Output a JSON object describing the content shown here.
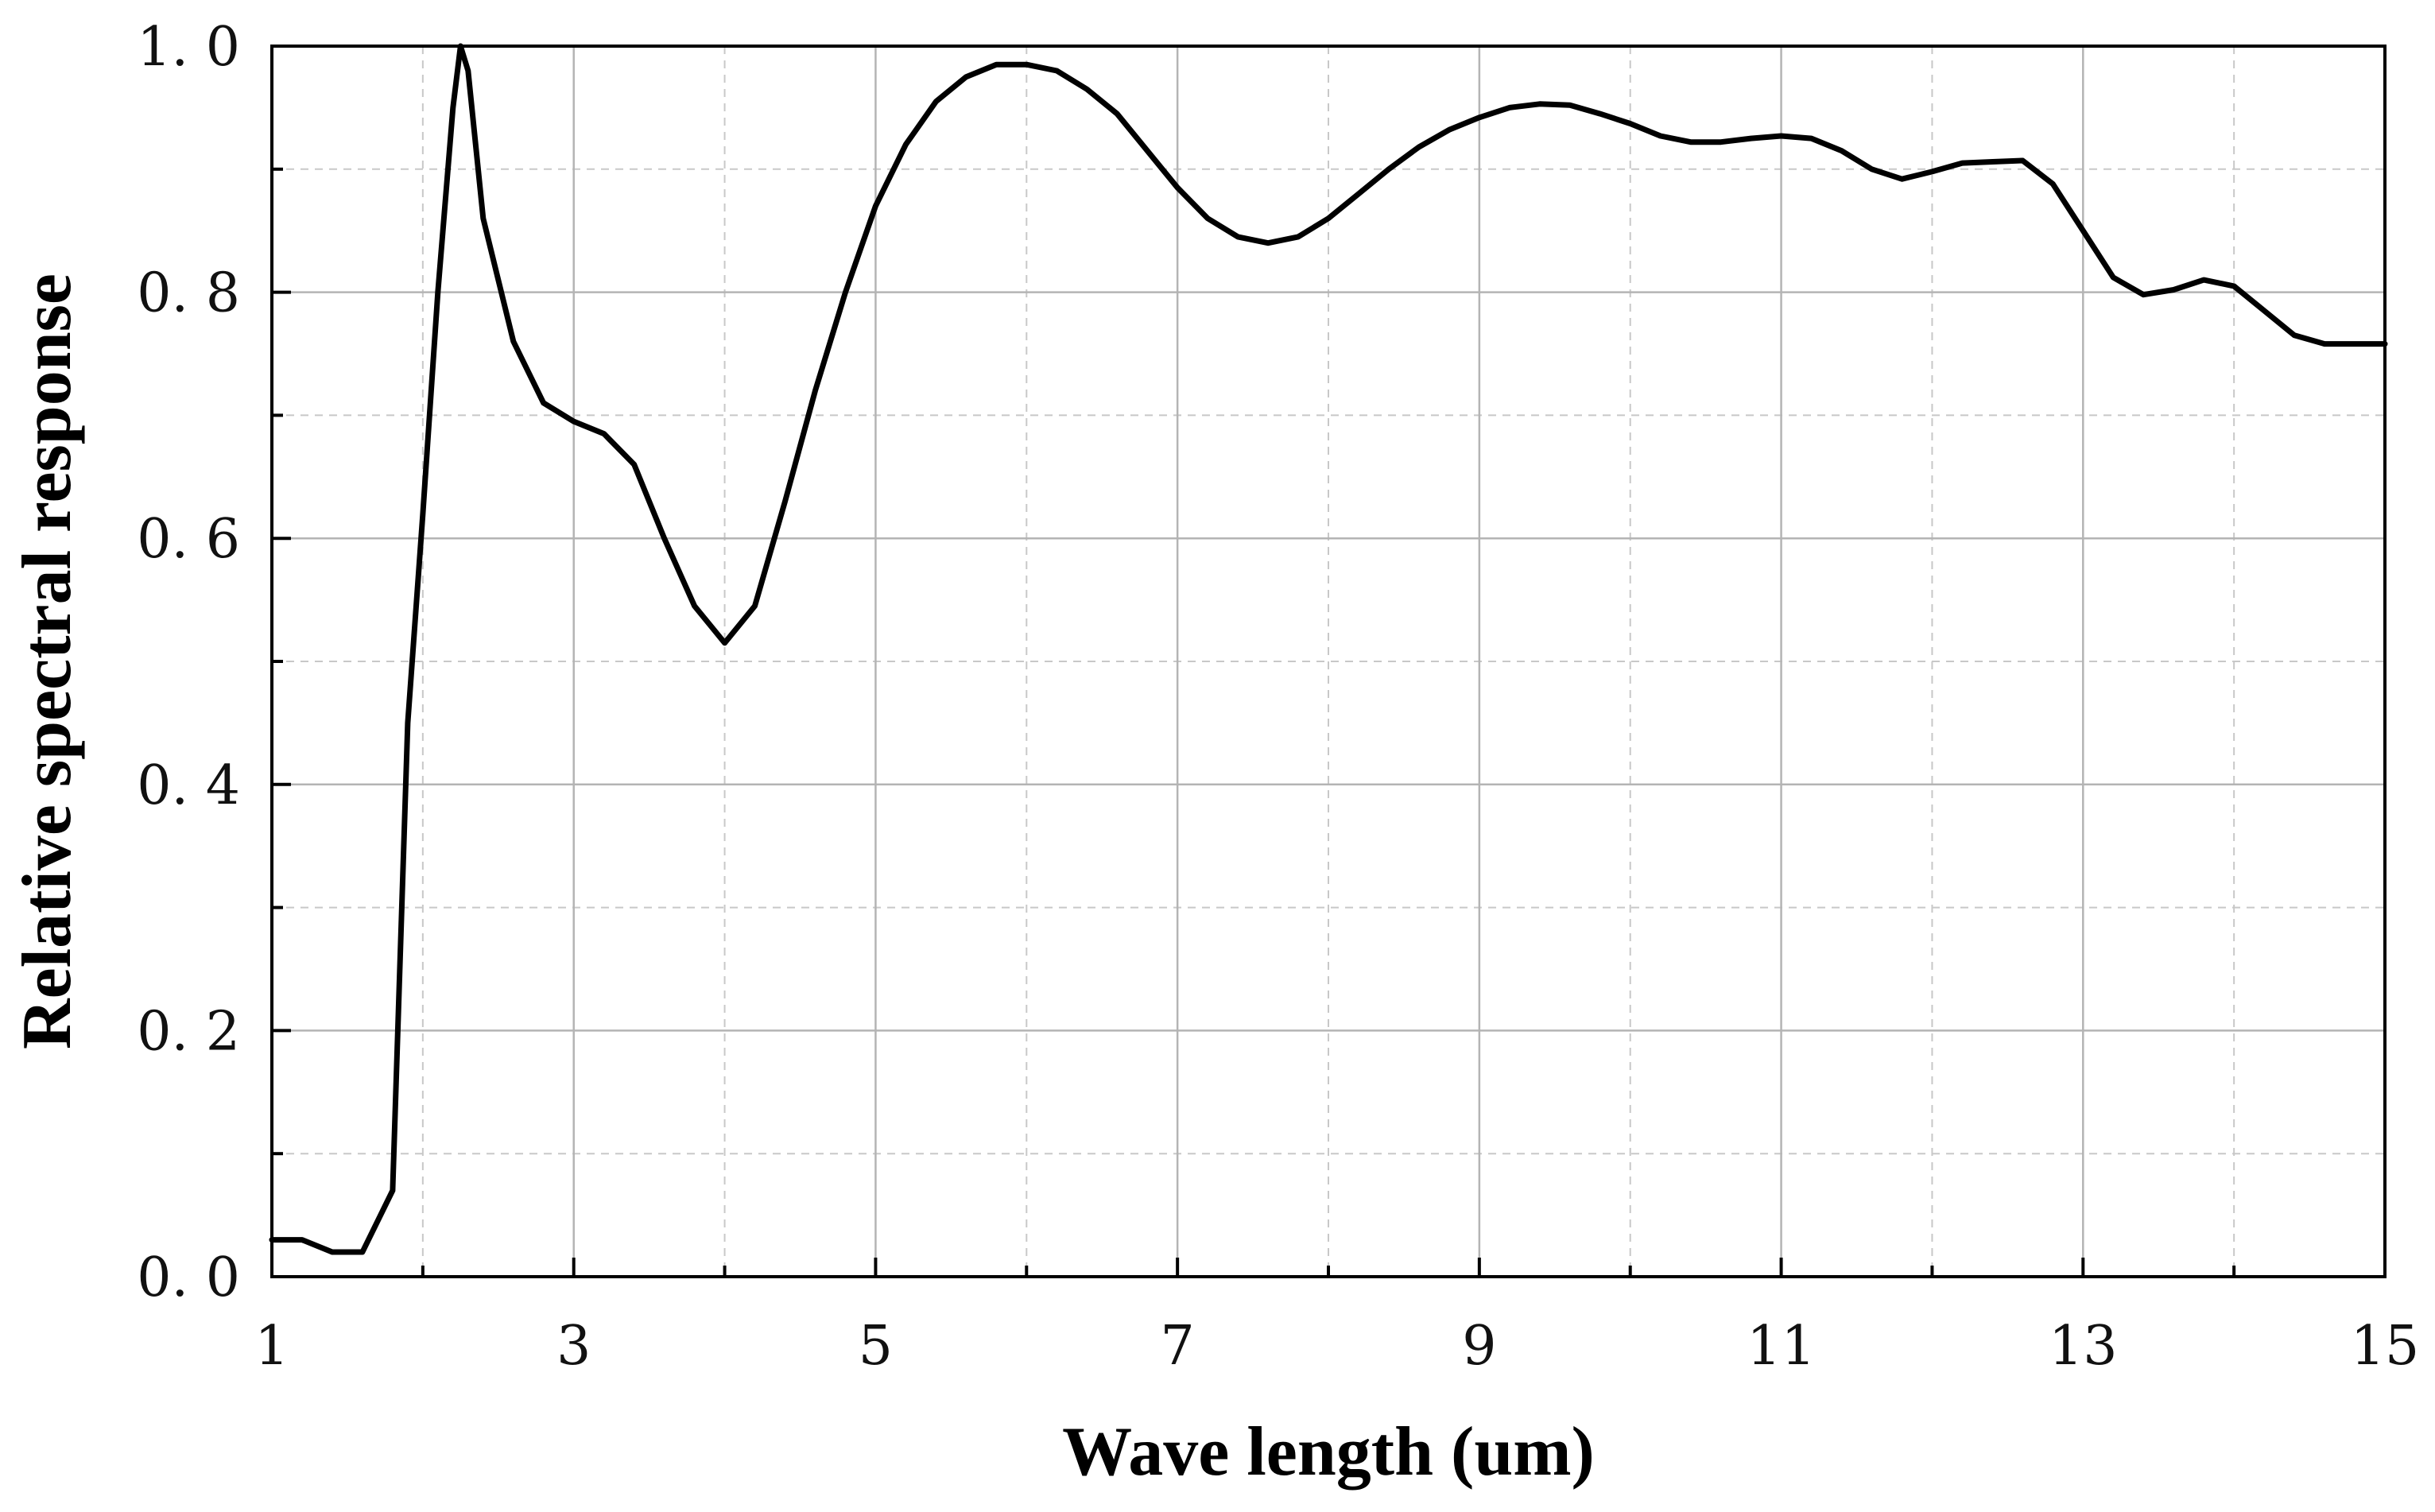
{
  "chart_data": {
    "type": "line",
    "title": "",
    "xlabel": "Wave length (um)",
    "ylabel": "Relative spectral response",
    "xlim": [
      1,
      15
    ],
    "ylim": [
      0,
      1
    ],
    "x_ticks": [
      1,
      3,
      5,
      7,
      9,
      11,
      13,
      15
    ],
    "x_tick_labels": [
      "1",
      "3",
      "5",
      "7",
      "9",
      "11",
      "13",
      "15"
    ],
    "y_ticks": [
      0,
      0.2,
      0.4,
      0.6,
      0.8,
      1.0
    ],
    "y_tick_labels": [
      "0. 0",
      "0. 2",
      "0. 4",
      "0. 6",
      "0. 8",
      "1. 0"
    ],
    "grid": true,
    "legend": "none",
    "line_color": "#000000",
    "series": [
      {
        "x": [
          1.0,
          1.2,
          1.4,
          1.6,
          1.8,
          1.9,
          2.0,
          2.1,
          2.2,
          2.25,
          2.3,
          2.4,
          2.6,
          2.8,
          3.0,
          3.2,
          3.4,
          3.6,
          3.8,
          4.0,
          4.2,
          4.4,
          4.6,
          4.8,
          5.0,
          5.2,
          5.4,
          5.6,
          5.8,
          6.0,
          6.2,
          6.4,
          6.6,
          6.8,
          7.0,
          7.2,
          7.4,
          7.6,
          7.8,
          8.0,
          8.2,
          8.4,
          8.6,
          8.8,
          9.0,
          9.2,
          9.4,
          9.6,
          9.8,
          10.0,
          10.2,
          10.4,
          10.6,
          10.8,
          11.0,
          11.2,
          11.4,
          11.6,
          11.8,
          12.0,
          12.2,
          12.4,
          12.6,
          12.8,
          13.0,
          13.2,
          13.4,
          13.6,
          13.8,
          14.0,
          14.2,
          14.4,
          14.6,
          14.8,
          15.0
        ],
        "y": [
          0.03,
          0.03,
          0.02,
          0.02,
          0.07,
          0.45,
          0.62,
          0.8,
          0.95,
          1.0,
          0.98,
          0.86,
          0.76,
          0.71,
          0.695,
          0.685,
          0.66,
          0.6,
          0.545,
          0.515,
          0.545,
          0.63,
          0.72,
          0.8,
          0.87,
          0.92,
          0.955,
          0.975,
          0.985,
          0.985,
          0.98,
          0.965,
          0.945,
          0.915,
          0.885,
          0.86,
          0.845,
          0.84,
          0.845,
          0.86,
          0.88,
          0.9,
          0.918,
          0.932,
          0.942,
          0.95,
          0.953,
          0.952,
          0.945,
          0.937,
          0.927,
          0.922,
          0.922,
          0.925,
          0.927,
          0.925,
          0.915,
          0.9,
          0.892,
          0.898,
          0.905,
          0.906,
          0.907,
          0.888,
          0.85,
          0.812,
          0.798,
          0.802,
          0.81,
          0.805,
          0.785,
          0.765,
          0.758,
          0.758,
          0.758
        ]
      }
    ]
  }
}
